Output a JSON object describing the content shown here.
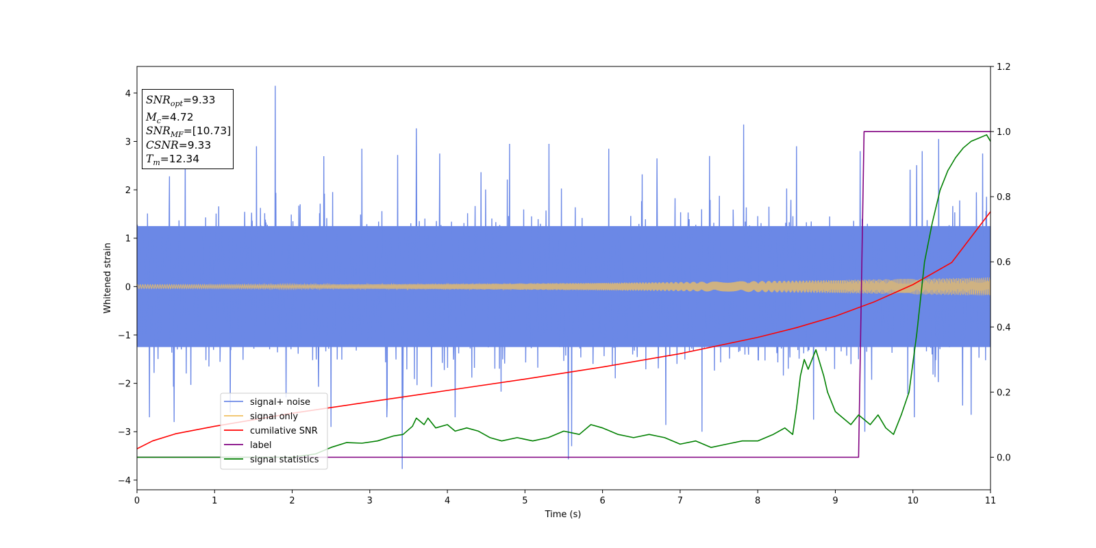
{
  "chart_data": {
    "type": "line",
    "xlabel": "Time (s)",
    "ylabel_left": "Whitened strain",
    "xlim": [
      0,
      11
    ],
    "ylim_left": [
      -4.2,
      4.55
    ],
    "ylim_right": [
      -0.1,
      1.2
    ],
    "x_ticks": [
      0,
      1,
      2,
      3,
      4,
      5,
      6,
      7,
      8,
      9,
      10,
      11
    ],
    "y_left_ticks": [
      -4,
      -3,
      -2,
      -1,
      0,
      1,
      2,
      3,
      4
    ],
    "y_right_ticks": [
      "0.0",
      "0.2",
      "0.4",
      "0.6",
      "0.8",
      "1.0",
      "1.2"
    ],
    "legend_position": "lower-left",
    "annotation": {
      "snr_opt": "9.33",
      "mc": "4.72",
      "snr_mf": "[10.73]",
      "csnr": "9.33",
      "tm": "12.34"
    },
    "series": [
      {
        "name": "signal+ noise",
        "axis": "left",
        "color": "#6b88e6",
        "kind": "noise-band",
        "typical_range": [
          -1.6,
          1.6
        ],
        "spikes": [
          {
            "x": 1.78,
            "y": 4.15
          },
          {
            "x": 3.6,
            "y": 3.27
          },
          {
            "x": 7.82,
            "y": 3.35
          },
          {
            "x": 10.33,
            "y": 3.05
          },
          {
            "x": 3.42,
            "y": -3.77
          },
          {
            "x": 5.56,
            "y": -3.57
          },
          {
            "x": 0.62,
            "y": 2.75
          },
          {
            "x": 1.54,
            "y": 2.9
          },
          {
            "x": 2.9,
            "y": 2.85
          },
          {
            "x": 3.36,
            "y": 2.72
          },
          {
            "x": 3.9,
            "y": 2.75
          },
          {
            "x": 4.8,
            "y": 2.95
          },
          {
            "x": 5.31,
            "y": 2.95
          },
          {
            "x": 6.08,
            "y": 2.85
          },
          {
            "x": 6.7,
            "y": 2.65
          },
          {
            "x": 7.38,
            "y": 2.7
          },
          {
            "x": 8.5,
            "y": 2.9
          },
          {
            "x": 9.32,
            "y": 2.8
          },
          {
            "x": 10.12,
            "y": 2.8
          },
          {
            "x": 10.9,
            "y": 2.75
          },
          {
            "x": 0.16,
            "y": -2.7
          },
          {
            "x": 0.48,
            "y": -2.8
          },
          {
            "x": 1.2,
            "y": -2.6
          },
          {
            "x": 2.5,
            "y": -2.9
          },
          {
            "x": 3.22,
            "y": -2.7
          },
          {
            "x": 4.1,
            "y": -2.7
          },
          {
            "x": 5.6,
            "y": -3.3
          },
          {
            "x": 7.28,
            "y": -3.0
          },
          {
            "x": 8.72,
            "y": -2.75
          },
          {
            "x": 9.38,
            "y": -3.0
          },
          {
            "x": 10.02,
            "y": -2.7
          },
          {
            "x": 10.75,
            "y": -2.65
          }
        ]
      },
      {
        "name": "signal only",
        "axis": "left",
        "color": "#f0c060",
        "kind": "chirp",
        "amplitude_start": 0.04,
        "amplitude_end": 0.19
      },
      {
        "name": "cumilative SNR",
        "axis": "right",
        "color": "#ff0000",
        "x": [
          0,
          0.2,
          0.5,
          1,
          2,
          3,
          4,
          5,
          6,
          7,
          8,
          8.5,
          9,
          9.5,
          10,
          10.5,
          11
        ],
        "y": [
          0.026,
          0.05,
          0.072,
          0.095,
          0.135,
          0.17,
          0.205,
          0.24,
          0.277,
          0.318,
          0.368,
          0.398,
          0.433,
          0.477,
          0.53,
          0.598,
          0.754
        ]
      },
      {
        "name": "label",
        "axis": "right",
        "color": "#800080",
        "x": [
          0,
          9.3,
          9.37,
          11
        ],
        "y": [
          0,
          0,
          1,
          1
        ]
      },
      {
        "name": "signal statistics",
        "axis": "right",
        "color": "#008000",
        "x": [
          0,
          1,
          1.5,
          2,
          2.3,
          2.5,
          2.7,
          2.9,
          3.1,
          3.3,
          3.43,
          3.55,
          3.6,
          3.7,
          3.75,
          3.85,
          4.0,
          4.1,
          4.25,
          4.4,
          4.55,
          4.7,
          4.9,
          5.1,
          5.3,
          5.5,
          5.7,
          5.85,
          6.0,
          6.2,
          6.4,
          6.6,
          6.8,
          7.0,
          7.2,
          7.4,
          7.6,
          7.8,
          8.0,
          8.2,
          8.35,
          8.45,
          8.5,
          8.55,
          8.6,
          8.65,
          8.75,
          8.85,
          8.9,
          9.0,
          9.1,
          9.2,
          9.3,
          9.45,
          9.55,
          9.65,
          9.75,
          9.85,
          9.95,
          10.05,
          10.15,
          10.25,
          10.35,
          10.45,
          10.55,
          10.65,
          10.75,
          10.85,
          10.95,
          11.0
        ],
        "y": [
          0.0,
          0.0,
          0.0,
          0.0,
          0.01,
          0.03,
          0.045,
          0.043,
          0.05,
          0.065,
          0.07,
          0.095,
          0.12,
          0.1,
          0.12,
          0.09,
          0.1,
          0.08,
          0.09,
          0.08,
          0.06,
          0.05,
          0.06,
          0.05,
          0.06,
          0.08,
          0.07,
          0.1,
          0.09,
          0.07,
          0.06,
          0.07,
          0.06,
          0.04,
          0.05,
          0.03,
          0.04,
          0.05,
          0.05,
          0.07,
          0.09,
          0.07,
          0.15,
          0.25,
          0.3,
          0.27,
          0.33,
          0.25,
          0.2,
          0.14,
          0.12,
          0.1,
          0.13,
          0.1,
          0.13,
          0.09,
          0.07,
          0.13,
          0.2,
          0.38,
          0.6,
          0.72,
          0.82,
          0.88,
          0.92,
          0.95,
          0.97,
          0.98,
          0.99,
          0.97
        ]
      }
    ]
  }
}
